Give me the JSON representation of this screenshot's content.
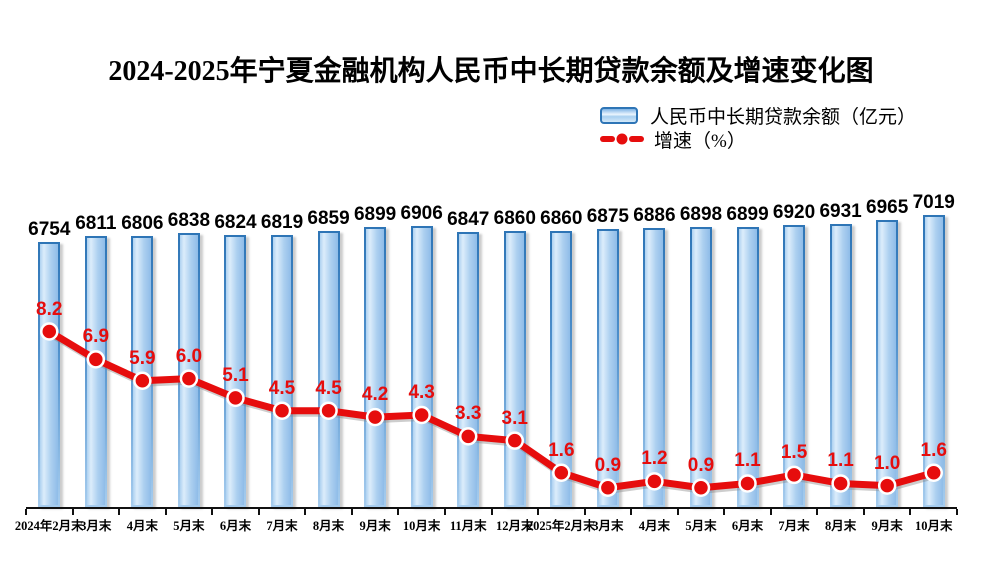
{
  "title": "2024-2025年宁夏金融机构人民币中长期贷款余额及增速变化图",
  "legend": {
    "bar_label": "人民币中长期贷款余额（亿元）",
    "line_label": "增速（%）"
  },
  "colors": {
    "bar_border": "#2E75B6",
    "bar_fill_light": "#DCEDFB",
    "bar_fill_main": "#ADD0F0",
    "line_red": "#E60D0D",
    "axis_black": "#111111"
  },
  "chart_data": {
    "type": "bar",
    "combo": "bar+line",
    "title": "2024-2025年宁夏金融机构人民币中长期贷款余额及增速变化图",
    "categories": [
      "2024年2月末",
      "3月末",
      "4月末",
      "5月末",
      "6月末",
      "7月末",
      "8月末",
      "9月末",
      "10月末",
      "11月末",
      "12月末",
      "2025年2月末",
      "3月末",
      "4月末",
      "5月末",
      "6月末",
      "7月末",
      "8月末",
      "9月末",
      "10月末"
    ],
    "series": [
      {
        "name": "人民币中长期贷款余额（亿元）",
        "type": "bar",
        "values": [
          6754,
          6811,
          6806,
          6838,
          6824,
          6819,
          6859,
          6899,
          6906,
          6847,
          6860,
          6860,
          6875,
          6886,
          6898,
          6899,
          6920,
          6931,
          6965,
          7019
        ]
      },
      {
        "name": "增速（%）",
        "type": "line",
        "values": [
          8.2,
          6.9,
          5.9,
          6.0,
          5.1,
          4.5,
          4.5,
          4.2,
          4.3,
          3.3,
          3.1,
          1.6,
          0.9,
          1.2,
          0.9,
          1.1,
          1.5,
          1.1,
          1.0,
          1.6
        ]
      }
    ],
    "xlabel": "",
    "ylabel": "",
    "grid": false,
    "legend_position": "top-right",
    "value_labels_shown": true,
    "axis_ranges": {
      "bar_axis_implied_min": 4150,
      "line_axis_zero_at_baseline": true
    }
  }
}
